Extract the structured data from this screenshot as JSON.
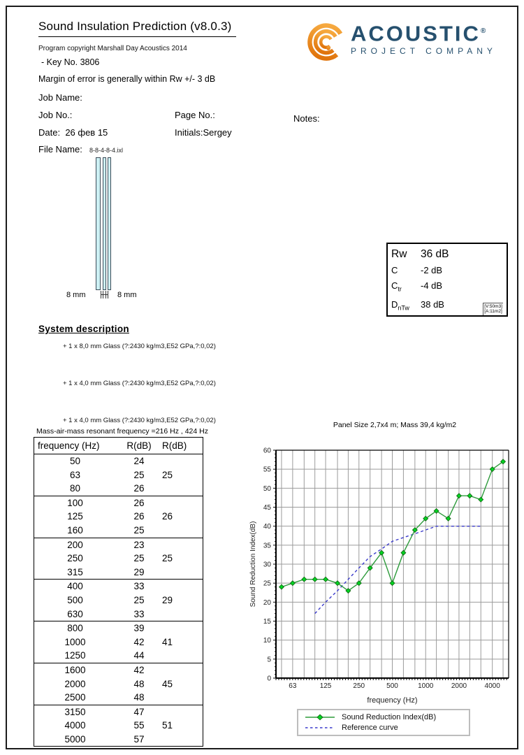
{
  "header": {
    "title": "Sound Insulation Prediction (v8.0.3)",
    "copyright": "Program copyright   Marshall Day Acoustics 2014",
    "key_line": "- Key No. 3806",
    "margin_line": "Margin of error is generally within  Rw +/- 3 dB"
  },
  "logo": {
    "brand": "ACOUSTIC",
    "registered": "®",
    "subtitle": "PROJECT COMPANY",
    "orange": "#EE8722",
    "navy": "#26506E"
  },
  "fields": {
    "job_name_label": "Job Name:",
    "job_no_label": "Job No.:",
    "page_no_label": "Page No.:",
    "notes_label": "Notes:",
    "date_label": "Date:",
    "date_value": "26 фев 15",
    "initials_label": "Initials:",
    "initials_value": "Sergey",
    "file_name_label": "File Name:",
    "file_name_value": "8-8-4-8-4.ixl"
  },
  "diagram": {
    "left_gap_label": "8 mm",
    "right_gap_label": "8 mm",
    "glass_fill": "#CDF0F4"
  },
  "results": {
    "rw_label": "Rw",
    "rw_value": "36 dB",
    "c_label": "C",
    "c_value": "-2 dB",
    "ctr_label": "C",
    "ctr_sub": "tr",
    "ctr_value": "-4 dB",
    "dntw_label": "D",
    "dntw_sub": "nTw",
    "dntw_value": "38 dB",
    "dntw_note1": "[V:50m3]",
    "dntw_note2": "[A:11m2]"
  },
  "system": {
    "heading": "System description",
    "items": [
      "+ 1 x 8,0 mm Glass (?:2430 kg/m3,E52 GPa,?:0,02)",
      "+ 1 x 4,0 mm Glass (?:2430 kg/m3,E52 GPa,?:0,02)",
      "+ 1 x 4,0 mm Glass (?:2430 kg/m3,E52 GPa,?:0,02)"
    ],
    "resonant_line": "Mass-air-mass resonant frequency =216 Hz , 424 Hz"
  },
  "table": {
    "headers": [
      "frequency (Hz)",
      "R(dB)",
      "R(dB)"
    ],
    "group_size": 3,
    "rows": [
      [
        "50",
        "24",
        ""
      ],
      [
        "63",
        "25",
        "25"
      ],
      [
        "80",
        "26",
        ""
      ],
      [
        "100",
        "26",
        ""
      ],
      [
        "125",
        "26",
        "26"
      ],
      [
        "160",
        "25",
        ""
      ],
      [
        "200",
        "23",
        ""
      ],
      [
        "250",
        "25",
        "25"
      ],
      [
        "315",
        "29",
        ""
      ],
      [
        "400",
        "33",
        ""
      ],
      [
        "500",
        "25",
        "29"
      ],
      [
        "630",
        "33",
        ""
      ],
      [
        "800",
        "39",
        ""
      ],
      [
        "1000",
        "42",
        "41"
      ],
      [
        "1250",
        "44",
        ""
      ],
      [
        "1600",
        "42",
        ""
      ],
      [
        "2000",
        "48",
        "45"
      ],
      [
        "2500",
        "48",
        ""
      ],
      [
        "3150",
        "47",
        ""
      ],
      [
        "4000",
        "55",
        "51"
      ],
      [
        "5000",
        "57",
        ""
      ]
    ]
  },
  "chart_data": {
    "type": "line",
    "title": "Panel Size 2,7x4 m; Mass 39,4 kg/m2",
    "xlabel": "frequency (Hz)",
    "ylabel": "Sound Reduction Index(dB)",
    "x_scale": "log-third-octave",
    "bands": [
      50,
      63,
      80,
      100,
      125,
      160,
      200,
      250,
      315,
      400,
      500,
      630,
      800,
      1000,
      1250,
      1600,
      2000,
      2500,
      3150,
      4000,
      5000
    ],
    "x_tick_labels": [
      "63",
      "125",
      "250",
      "500",
      "1000",
      "2000",
      "4000"
    ],
    "x_tick_values": [
      63,
      125,
      250,
      500,
      1000,
      2000,
      4000
    ],
    "ylim": [
      0,
      60
    ],
    "y_tick_step": 5,
    "grid": true,
    "grid_color": "#9b9b9b",
    "legend_position": "bottom",
    "series": [
      {
        "name": "Sound Reduction Index(dB)",
        "color": "#2E9B3C",
        "marker": "diamond",
        "marker_fill": "#00D323",
        "marker_stroke": "#136B13",
        "x": [
          50,
          63,
          80,
          100,
          125,
          160,
          200,
          250,
          315,
          400,
          500,
          630,
          800,
          1000,
          1250,
          1600,
          2000,
          2500,
          3150,
          4000,
          5000
        ],
        "values": [
          24,
          25,
          26,
          26,
          26,
          25,
          23,
          25,
          29,
          33,
          25,
          33,
          39,
          42,
          44,
          42,
          48,
          48,
          47,
          55,
          57
        ]
      },
      {
        "name": "Reference curve",
        "color": "#3A3ACB",
        "dash": true,
        "x": [
          100,
          125,
          160,
          200,
          250,
          315,
          400,
          500,
          630,
          800,
          1000,
          1250,
          1600,
          2000,
          2500,
          3150
        ],
        "values": [
          17,
          20,
          23,
          26,
          29,
          32,
          34,
          36,
          37,
          38,
          39,
          40,
          40,
          40,
          40,
          40
        ]
      }
    ]
  }
}
